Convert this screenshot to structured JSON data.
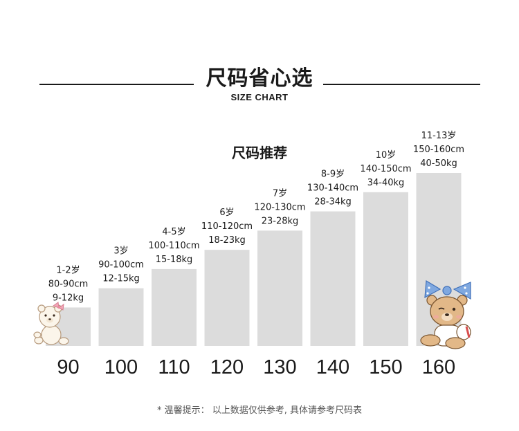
{
  "header": {
    "title": "尺码省心选",
    "subtitle": "SIZE CHART"
  },
  "chart_data": {
    "type": "bar",
    "title": "尺码推荐",
    "categories": [
      "90",
      "100",
      "110",
      "120",
      "130",
      "140",
      "150",
      "160"
    ],
    "values": [
      90,
      100,
      110,
      120,
      130,
      140,
      150,
      160
    ],
    "ylim": [
      70,
      175
    ],
    "labels": [
      [
        "1-2岁",
        "80-90cm",
        "9-12kg"
      ],
      [
        "3岁",
        "90-100cm",
        "12-15kg"
      ],
      [
        "4-5岁",
        "100-110cm",
        "15-18kg"
      ],
      [
        "6岁",
        "110-120cm",
        "18-23kg"
      ],
      [
        "7岁",
        "120-130cm",
        "23-28kg"
      ],
      [
        "8-9岁",
        "130-140cm",
        "28-34kg"
      ],
      [
        "10岁",
        "140-150cm",
        "34-40kg"
      ],
      [
        "11-13岁",
        "150-160cm",
        "40-50kg"
      ]
    ],
    "bar_color": "#dcdcdc",
    "grid": false
  },
  "footer": {
    "note": "* 温馨提示： 以上数据仅供参考, 具体请参考尺码表"
  },
  "decor": {
    "left_mascot": "teddy-bear-with-pink-bow",
    "right_mascot": "teddy-bear-with-blue-polka-dot-bow"
  }
}
